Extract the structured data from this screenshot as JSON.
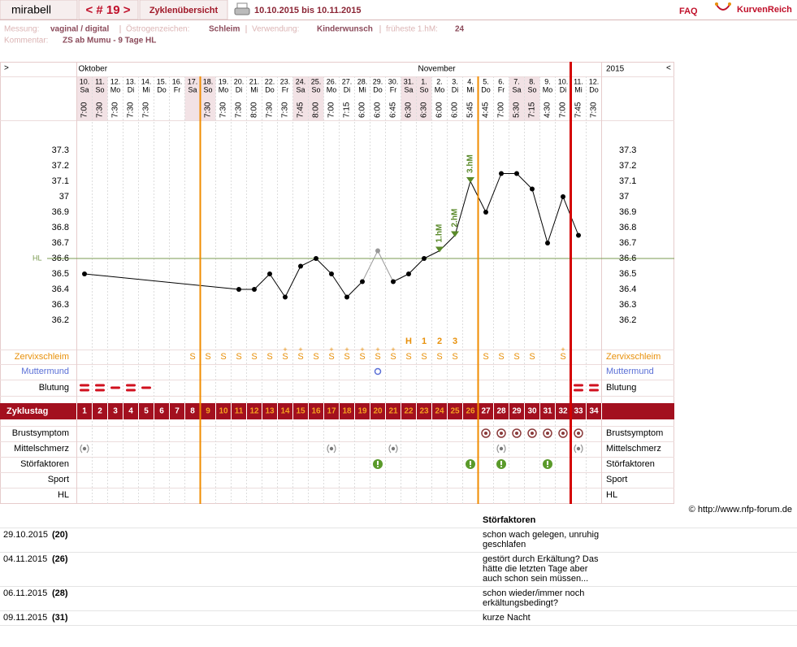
{
  "header": {
    "user": "mirabell",
    "cycle": "< # 19 >",
    "overview": "Zyklenübersicht",
    "range": "10.10.2015 bis 10.11.2015",
    "faq": "FAQ",
    "brand": "KurvenReich"
  },
  "info": {
    "items": [
      {
        "label": "Messung:",
        "value": "vaginal / digital"
      },
      {
        "label": "Östrogenzeichen:",
        "value": "Schleim"
      },
      {
        "label": "Verwendung:",
        "value": "Kinderwunsch"
      },
      {
        "label": "früheste 1.hM:",
        "value": 24
      }
    ],
    "comment_label": "Kommentar:",
    "comment": "ZS ab Mumu - 9 Tage HL"
  },
  "chart_data": {
    "type": "line",
    "nav_left": ">",
    "nav_right": "<",
    "year": "2015",
    "months": [
      "Oktober",
      null,
      null,
      null,
      null,
      null,
      null,
      null,
      null,
      null,
      null,
      null,
      null,
      null,
      null,
      null,
      null,
      null,
      null,
      null,
      null,
      null,
      "November",
      null,
      null,
      null,
      null,
      null,
      null,
      null,
      null,
      null,
      null,
      null
    ],
    "days": [
      "10.",
      "11.",
      "12.",
      "13.",
      "14.",
      "15.",
      "16.",
      "17.",
      "18.",
      "19.",
      "20.",
      "21.",
      "22.",
      "23.",
      "24.",
      "25.",
      "26.",
      "27.",
      "28.",
      "29.",
      "30.",
      "31.",
      "1.",
      "2.",
      "3.",
      "4.",
      "5.",
      "6.",
      "7.",
      "8.",
      "9.",
      "10.",
      "11.",
      "12."
    ],
    "weekdays": [
      "Sa",
      "So",
      "Mo",
      "Di",
      "Mi",
      "Do",
      "Fr",
      "Sa",
      "So",
      "Mo",
      "Di",
      "Mi",
      "Do",
      "Fr",
      "Sa",
      "So",
      "Mo",
      "Di",
      "Mi",
      "Do",
      "Fr",
      "Sa",
      "So",
      "Mo",
      "Di",
      "Mi",
      "Do",
      "Fr",
      "Sa",
      "So",
      "Mo",
      "Di",
      "Mi",
      "Do"
    ],
    "times": [
      "7:00",
      "7:30",
      "7:30",
      "7:30",
      "7:30",
      null,
      null,
      null,
      "7:30",
      "7:30",
      "7:30",
      "8:00",
      "7:30",
      "7:30",
      "7:45",
      "8:00",
      "7:00",
      "7:15",
      "6:00",
      "6:00",
      "6:45",
      "6:30",
      "6:30",
      "6:00",
      "6:00",
      "5:45",
      "4:45",
      "7:00",
      "5:30",
      "7:15",
      "4:30",
      "7:00",
      "7:45",
      "7:30"
    ],
    "values": [
      36.5,
      null,
      null,
      null,
      null,
      null,
      null,
      null,
      null,
      null,
      36.4,
      36.4,
      36.5,
      36.35,
      36.55,
      36.6,
      36.5,
      36.35,
      36.45,
      36.65,
      36.45,
      36.5,
      36.6,
      36.65,
      36.75,
      37.1,
      36.9,
      37.15,
      37.15,
      37.05,
      36.7,
      37.0,
      36.75,
      null
    ],
    "excluded": [
      19
    ],
    "color": "#000000",
    "excluded_color": "#999999",
    "peak_color": "#5a8a2a",
    "peak_labels": [
      null,
      null,
      null,
      null,
      null,
      null,
      null,
      null,
      null,
      null,
      null,
      null,
      null,
      null,
      null,
      null,
      null,
      null,
      null,
      null,
      null,
      null,
      null,
      "1.hM",
      "2.hM",
      "3.hM",
      null,
      null,
      null,
      null,
      null,
      null,
      null,
      null
    ],
    "ylim": [
      36.0,
      37.5
    ],
    "yticks": [
      36.2,
      36.3,
      36.4,
      36.5,
      36.6,
      36.7,
      36.8,
      36.9,
      37,
      37.1,
      37.2,
      37.3
    ],
    "coverline": {
      "value": 36.6,
      "label": "HL",
      "color": "#7a9a50"
    },
    "hl_count": [
      null,
      null,
      null,
      null,
      null,
      null,
      null,
      null,
      null,
      null,
      null,
      null,
      null,
      null,
      null,
      null,
      null,
      null,
      null,
      null,
      null,
      "H",
      "1",
      "2",
      "3",
      null,
      null,
      null,
      null,
      null,
      null,
      null,
      null,
      null
    ],
    "upper_rows": [
      {
        "label": "Zervixschleim",
        "color": "#e8900a",
        "values": [
          null,
          null,
          null,
          null,
          null,
          null,
          null,
          "S",
          "S",
          "S",
          "S",
          "S",
          "S",
          "S+",
          "S+",
          "S",
          "S+",
          "S+",
          "S+",
          "S+",
          "S+",
          "S",
          "S",
          "S",
          "S",
          null,
          "S",
          "S",
          "S",
          "S",
          null,
          "S+",
          null,
          null
        ]
      },
      {
        "label": "Muttermund",
        "color": "#5a6fd6",
        "values": [
          null,
          null,
          null,
          null,
          null,
          null,
          null,
          null,
          null,
          null,
          null,
          null,
          null,
          null,
          null,
          null,
          null,
          null,
          null,
          1,
          null,
          null,
          null,
          null,
          null,
          null,
          null,
          null,
          null,
          null,
          null,
          null,
          null,
          null
        ]
      },
      {
        "label": "Blutung",
        "color": "#000000",
        "values": [
          2,
          2,
          1,
          2,
          1,
          null,
          null,
          null,
          null,
          null,
          null,
          null,
          null,
          null,
          null,
          null,
          null,
          null,
          null,
          null,
          null,
          null,
          null,
          null,
          null,
          null,
          null,
          null,
          null,
          null,
          null,
          null,
          2,
          2
        ]
      }
    ],
    "cycle_label": "Zyklustag",
    "cycle_days": [
      1,
      2,
      3,
      4,
      5,
      6,
      7,
      8,
      9,
      10,
      11,
      12,
      13,
      14,
      15,
      16,
      17,
      18,
      19,
      20,
      21,
      22,
      23,
      24,
      25,
      26,
      27,
      28,
      29,
      30,
      31,
      32,
      33,
      34
    ],
    "lower_rows": [
      {
        "label": "Brustsymptom",
        "values": [
          null,
          null,
          null,
          null,
          null,
          null,
          null,
          null,
          null,
          null,
          null,
          null,
          null,
          null,
          null,
          null,
          null,
          null,
          null,
          null,
          null,
          null,
          null,
          null,
          null,
          null,
          1,
          1,
          1,
          1,
          1,
          1,
          1,
          null
        ]
      },
      {
        "label": "Mittelschmerz",
        "values": [
          1,
          null,
          null,
          null,
          null,
          null,
          null,
          null,
          null,
          null,
          null,
          null,
          null,
          null,
          null,
          null,
          1,
          null,
          null,
          null,
          1,
          null,
          null,
          null,
          null,
          null,
          null,
          1,
          null,
          null,
          null,
          null,
          1,
          null
        ]
      },
      {
        "label": "Störfaktoren",
        "values": [
          null,
          null,
          null,
          null,
          null,
          null,
          null,
          null,
          null,
          null,
          null,
          null,
          null,
          null,
          null,
          null,
          null,
          null,
          null,
          1,
          null,
          null,
          null,
          null,
          null,
          1,
          null,
          1,
          null,
          null,
          1,
          null,
          null,
          null
        ]
      },
      {
        "label": "Sport"
      },
      {
        "label": "HL"
      }
    ],
    "phase_lines": [
      {
        "after_day": 8,
        "color": "#f08c00"
      },
      {
        "after_day": 26,
        "color": "#f08c00"
      },
      {
        "after_day": 32,
        "color": "#d40000"
      }
    ]
  },
  "copyright": "© http://www.nfp-forum.de",
  "notes": {
    "header": "Störfaktoren",
    "rows": [
      [
        "29.10.2015",
        "(20)",
        "schon wach gelegen, unruhig geschlafen"
      ],
      [
        "04.11.2015",
        "(26)",
        "gestört durch Erkältung? Das hätte die letzten Tage aber auch schon sein müssen..."
      ],
      [
        "06.11.2015",
        "(28)",
        "schon wieder/immer noch erkältungsbedingt?"
      ],
      [
        "09.11.2015",
        "(31)",
        "kurze Nacht"
      ]
    ]
  }
}
